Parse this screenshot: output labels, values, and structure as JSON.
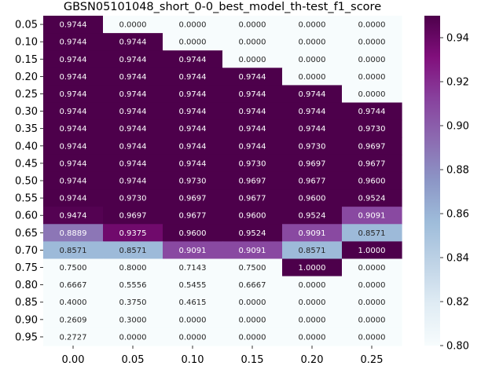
{
  "chart_data": {
    "type": "heatmap",
    "title": "GBSN05101048_short_0-0_best_model_th-test_f1_score",
    "xlabel": "",
    "ylabel": "",
    "x_categories": [
      "0.00",
      "0.05",
      "0.10",
      "0.15",
      "0.20",
      "0.25"
    ],
    "y_categories": [
      "0.05",
      "0.10",
      "0.15",
      "0.20",
      "0.25",
      "0.30",
      "0.35",
      "0.40",
      "0.45",
      "0.50",
      "0.55",
      "0.60",
      "0.65",
      "0.70",
      "0.75",
      "0.80",
      "0.85",
      "0.90",
      "0.95"
    ],
    "values": [
      [
        "0.9744",
        "0.0000",
        "0.0000",
        "0.0000",
        "0.0000",
        "0.0000"
      ],
      [
        "0.9744",
        "0.9744",
        "0.0000",
        "0.0000",
        "0.0000",
        "0.0000"
      ],
      [
        "0.9744",
        "0.9744",
        "0.9744",
        "0.0000",
        "0.0000",
        "0.0000"
      ],
      [
        "0.9744",
        "0.9744",
        "0.9744",
        "0.9744",
        "0.0000",
        "0.0000"
      ],
      [
        "0.9744",
        "0.9744",
        "0.9744",
        "0.9744",
        "0.9744",
        "0.0000"
      ],
      [
        "0.9744",
        "0.9744",
        "0.9744",
        "0.9744",
        "0.9744",
        "0.9744"
      ],
      [
        "0.9744",
        "0.9744",
        "0.9744",
        "0.9744",
        "0.9744",
        "0.9730"
      ],
      [
        "0.9744",
        "0.9744",
        "0.9744",
        "0.9744",
        "0.9730",
        "0.9697"
      ],
      [
        "0.9744",
        "0.9744",
        "0.9744",
        "0.9730",
        "0.9697",
        "0.9677"
      ],
      [
        "0.9744",
        "0.9744",
        "0.9730",
        "0.9697",
        "0.9677",
        "0.9600"
      ],
      [
        "0.9744",
        "0.9730",
        "0.9697",
        "0.9677",
        "0.9600",
        "0.9524"
      ],
      [
        "0.9474",
        "0.9697",
        "0.9677",
        "0.9600",
        "0.9524",
        "0.9091"
      ],
      [
        "0.8889",
        "0.9375",
        "0.9600",
        "0.9524",
        "0.9091",
        "0.8571"
      ],
      [
        "0.8571",
        "0.8571",
        "0.9091",
        "0.9091",
        "0.8571",
        "1.0000"
      ],
      [
        "0.7500",
        "0.8000",
        "0.7143",
        "0.7500",
        "1.0000",
        "0.0000"
      ],
      [
        "0.6667",
        "0.5556",
        "0.5455",
        "0.6667",
        "0.0000",
        "0.0000"
      ],
      [
        "0.4000",
        "0.3750",
        "0.4615",
        "0.0000",
        "0.0000",
        "0.0000"
      ],
      [
        "0.2609",
        "0.3000",
        "0.0000",
        "0.0000",
        "0.0000",
        "0.0000"
      ],
      [
        "0.2727",
        "0.0000",
        "0.0000",
        "0.0000",
        "0.0000",
        "0.0000"
      ]
    ],
    "vmin": 0.8,
    "vmax": 0.95,
    "colormap": "BuPu",
    "colorbar_ticks": [
      "0.80",
      "0.82",
      "0.84",
      "0.86",
      "0.88",
      "0.90",
      "0.92",
      "0.94"
    ],
    "legend": "colorbar-right",
    "grid": false
  }
}
